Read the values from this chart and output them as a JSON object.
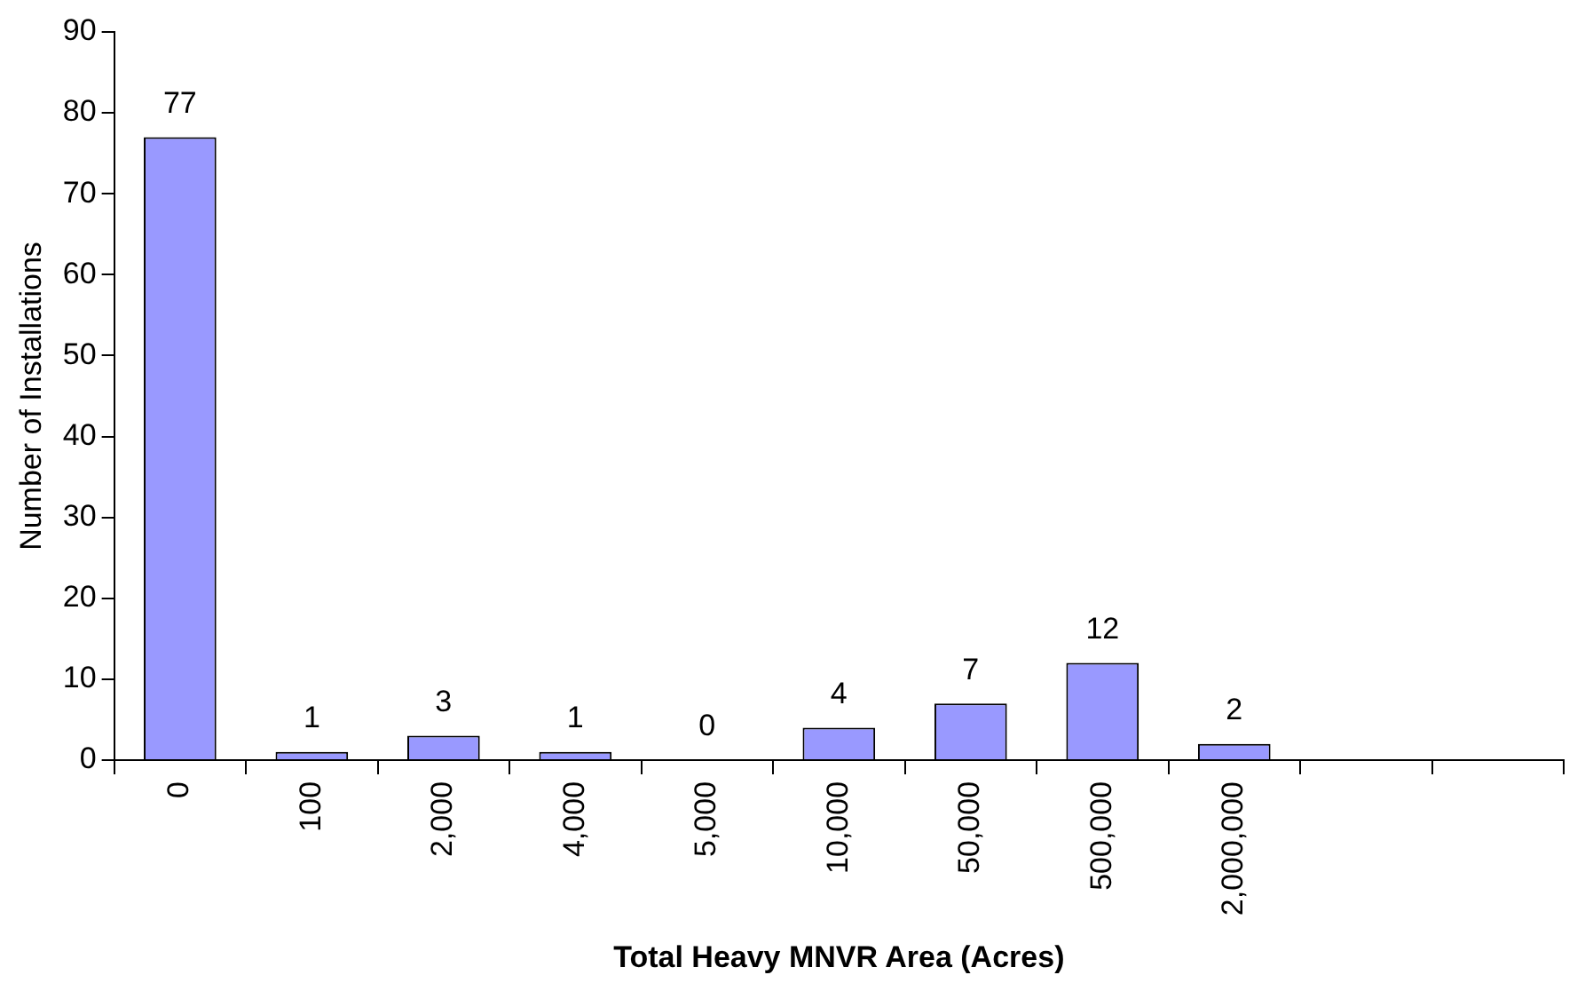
{
  "chart_data": {
    "type": "bar",
    "xlabel": "Total Heavy MNVR Area (Acres)",
    "ylabel": "Number of Installations",
    "categories": [
      "0",
      "100",
      "2,000",
      "4,000",
      "5,000",
      "10,000",
      "50,000",
      "500,000",
      "2,000,000",
      null,
      null
    ],
    "values": [
      77,
      1,
      3,
      1,
      0,
      4,
      7,
      12,
      2,
      null,
      null
    ],
    "color": "#9999ff",
    "ylim": [
      0,
      90
    ],
    "yticks": [
      0,
      10,
      20,
      30,
      40,
      50,
      60,
      70,
      80,
      90
    ],
    "grid": false,
    "legend": false,
    "data_labels": true
  }
}
